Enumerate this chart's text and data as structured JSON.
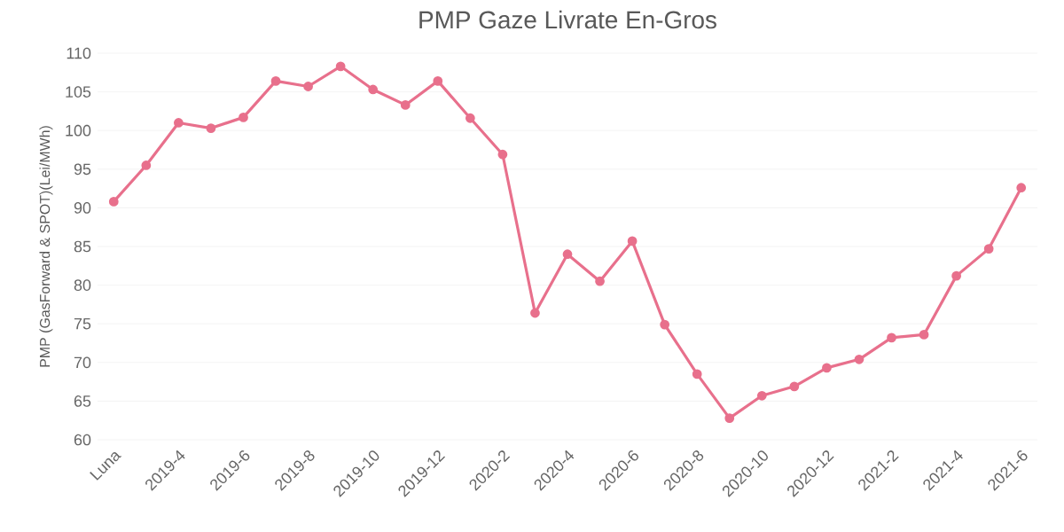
{
  "chart_data": {
    "type": "line",
    "title": "PMP Gaze Livrate En-Gros",
    "ylabel": "PMP (GasForward & SPOT)(Lei/MWh)",
    "categories": [
      "Luna",
      null,
      "2019-4",
      null,
      "2019-6",
      null,
      "2019-8",
      null,
      "2019-10",
      null,
      "2019-12",
      null,
      "2020-2",
      null,
      "2020-4",
      null,
      "2020-6",
      null,
      "2020-8",
      null,
      "2020-10",
      null,
      "2020-12",
      null,
      "2021-2",
      null,
      "2021-4",
      null,
      "2021-6"
    ],
    "series": [
      {
        "color": "#e8708c",
        "values": [
          90.8,
          95.5,
          101.0,
          100.3,
          101.7,
          106.4,
          105.7,
          108.3,
          105.3,
          103.3,
          106.4,
          101.6,
          96.9,
          76.4,
          84.0,
          80.5,
          85.7,
          74.9,
          68.5,
          62.8,
          65.7,
          66.9,
          69.3,
          70.4,
          73.2,
          73.6,
          81.2,
          84.7,
          92.6
        ]
      }
    ],
    "ylim": [
      60,
      110
    ],
    "yticks": [
      60,
      65,
      70,
      75,
      80,
      85,
      90,
      95,
      100,
      105,
      110
    ],
    "grid": "y",
    "marker": "circle",
    "line_style": "solid"
  }
}
